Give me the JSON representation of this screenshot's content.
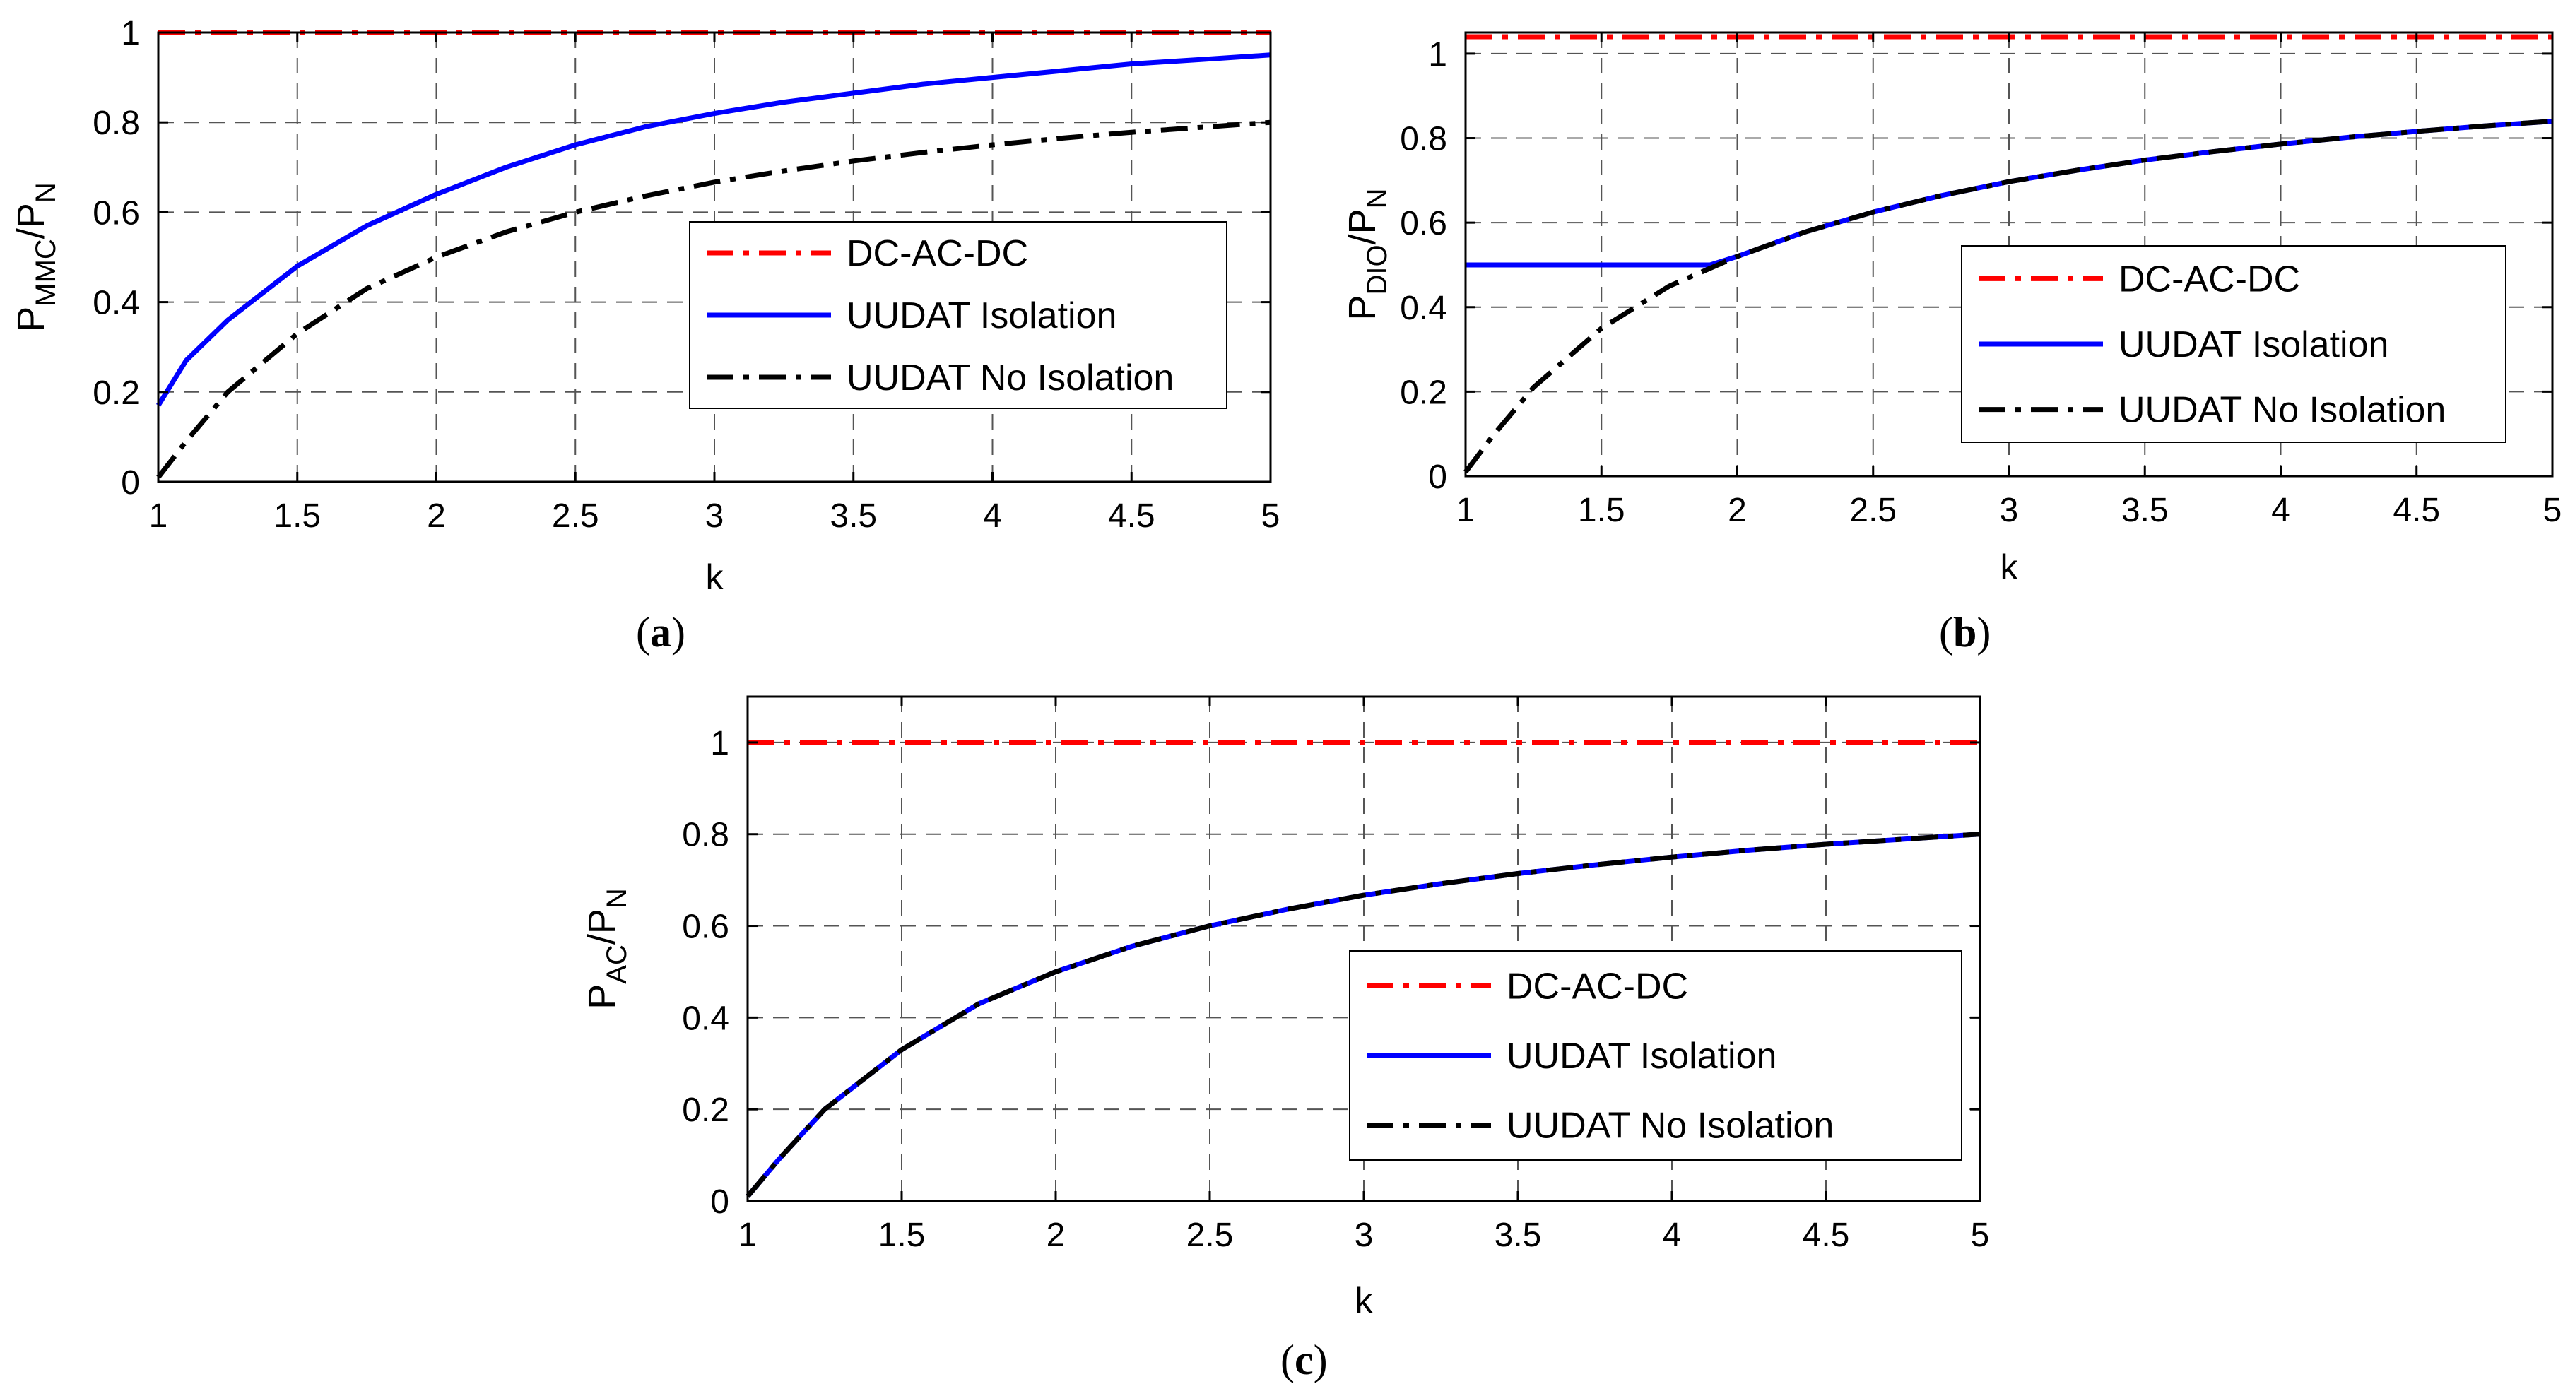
{
  "chart_data": [
    {
      "panel_label": "a",
      "type": "line",
      "xlabel": "k",
      "ylabel": {
        "main": "P",
        "sub1": "MMC",
        "mid": "/P",
        "sub2": "N"
      },
      "xlim": [
        1,
        5
      ],
      "ylim": [
        0,
        1
      ],
      "xticks": [
        "1",
        "1.5",
        "2",
        "2.5",
        "3",
        "3.5",
        "4",
        "4.5",
        "5"
      ],
      "yticks": [
        "0",
        "0.2",
        "0.4",
        "0.6",
        "0.8",
        "1"
      ],
      "grid": true,
      "legend_position": "right-middle",
      "series": [
        {
          "name": "DC-AC-DC",
          "color": "#ff0000",
          "style": "dashdot",
          "x": [
            1,
            5
          ],
          "y": [
            1,
            1
          ]
        },
        {
          "name": "UUDAT Isolation",
          "color": "#0000ff",
          "style": "solid",
          "x": [
            1,
            1.1,
            1.25,
            1.5,
            1.75,
            2,
            2.25,
            2.5,
            2.75,
            3,
            3.25,
            3.5,
            3.75,
            4,
            4.25,
            4.5,
            4.75,
            5
          ],
          "y": [
            0.17,
            0.27,
            0.36,
            0.48,
            0.57,
            0.64,
            0.7,
            0.75,
            0.79,
            0.82,
            0.845,
            0.865,
            0.885,
            0.9,
            0.915,
            0.93,
            0.94,
            0.95
          ]
        },
        {
          "name": "UUDAT No Isolation",
          "color": "#000000",
          "style": "dashdot",
          "x": [
            1,
            1.1,
            1.25,
            1.5,
            1.75,
            2,
            2.25,
            2.5,
            2.75,
            3,
            3.25,
            3.5,
            3.75,
            4,
            4.25,
            4.5,
            4.75,
            5
          ],
          "y": [
            0.01,
            0.09,
            0.2,
            0.33,
            0.43,
            0.5,
            0.556,
            0.6,
            0.636,
            0.667,
            0.692,
            0.714,
            0.733,
            0.75,
            0.765,
            0.778,
            0.789,
            0.8
          ]
        }
      ]
    },
    {
      "panel_label": "b",
      "type": "line",
      "xlabel": "k",
      "ylabel": {
        "main": "P",
        "sub1": "DIO",
        "mid": "/P",
        "sub2": "N"
      },
      "xlim": [
        1,
        5
      ],
      "ylim": [
        0,
        1.05
      ],
      "xticks": [
        "1",
        "1.5",
        "2",
        "2.5",
        "3",
        "3.5",
        "4",
        "4.5",
        "5"
      ],
      "yticks": [
        "0",
        "0.2",
        "0.4",
        "0.6",
        "0.8",
        "1"
      ],
      "grid": true,
      "legend_position": "right-bottom",
      "series": [
        {
          "name": "DC-AC-DC",
          "color": "#ff0000",
          "style": "dashdot",
          "x": [
            1,
            5
          ],
          "y": [
            1.04,
            1.04
          ]
        },
        {
          "name": "UUDAT Isolation",
          "color": "#0000ff",
          "style": "solid",
          "x": [
            1,
            1.9,
            2,
            2.25,
            2.5,
            2.75,
            3,
            3.25,
            3.5,
            3.75,
            4,
            4.25,
            4.5,
            4.75,
            5
          ],
          "y": [
            0.5,
            0.5,
            0.52,
            0.578,
            0.625,
            0.664,
            0.697,
            0.724,
            0.748,
            0.768,
            0.786,
            0.802,
            0.816,
            0.829,
            0.84
          ]
        },
        {
          "name": "UUDAT No Isolation",
          "color": "#000000",
          "style": "dashdot",
          "x": [
            1,
            1.1,
            1.25,
            1.5,
            1.75,
            2,
            2.25,
            2.5,
            2.75,
            3,
            3.25,
            3.5,
            3.75,
            4,
            4.25,
            4.5,
            4.75,
            5
          ],
          "y": [
            0.01,
            0.095,
            0.21,
            0.35,
            0.45,
            0.52,
            0.578,
            0.625,
            0.664,
            0.697,
            0.724,
            0.748,
            0.768,
            0.786,
            0.802,
            0.816,
            0.829,
            0.84
          ]
        }
      ]
    },
    {
      "panel_label": "c",
      "type": "line",
      "xlabel": "k",
      "ylabel": {
        "main": "P",
        "sub1": "AC",
        "mid": "/P",
        "sub2": "N"
      },
      "xlim": [
        1,
        5
      ],
      "ylim": [
        0,
        1.1
      ],
      "xticks": [
        "1",
        "1.5",
        "2",
        "2.5",
        "3",
        "3.5",
        "4",
        "4.5",
        "5"
      ],
      "yticks": [
        "0",
        "0.2",
        "0.4",
        "0.6",
        "0.8",
        "1"
      ],
      "grid": true,
      "legend_position": "right-bottom",
      "series": [
        {
          "name": "DC-AC-DC",
          "color": "#ff0000",
          "style": "dashdot",
          "x": [
            1,
            5
          ],
          "y": [
            1,
            1
          ]
        },
        {
          "name": "UUDAT Isolation",
          "color": "#0000ff",
          "style": "solid",
          "x": [
            1,
            1.1,
            1.25,
            1.5,
            1.75,
            2,
            2.25,
            2.5,
            2.75,
            3,
            3.25,
            3.5,
            3.75,
            4,
            4.25,
            4.5,
            4.75,
            5
          ],
          "y": [
            0.01,
            0.09,
            0.2,
            0.33,
            0.43,
            0.5,
            0.556,
            0.6,
            0.636,
            0.667,
            0.692,
            0.714,
            0.733,
            0.75,
            0.765,
            0.778,
            0.789,
            0.8
          ]
        },
        {
          "name": "UUDAT No Isolation",
          "color": "#000000",
          "style": "dashdot",
          "x": [
            1,
            1.1,
            1.25,
            1.5,
            1.75,
            2,
            2.25,
            2.5,
            2.75,
            3,
            3.25,
            3.5,
            3.75,
            4,
            4.25,
            4.5,
            4.75,
            5
          ],
          "y": [
            0.01,
            0.09,
            0.2,
            0.33,
            0.43,
            0.5,
            0.556,
            0.6,
            0.636,
            0.667,
            0.692,
            0.714,
            0.733,
            0.75,
            0.765,
            0.778,
            0.789,
            0.8
          ]
        }
      ]
    }
  ]
}
